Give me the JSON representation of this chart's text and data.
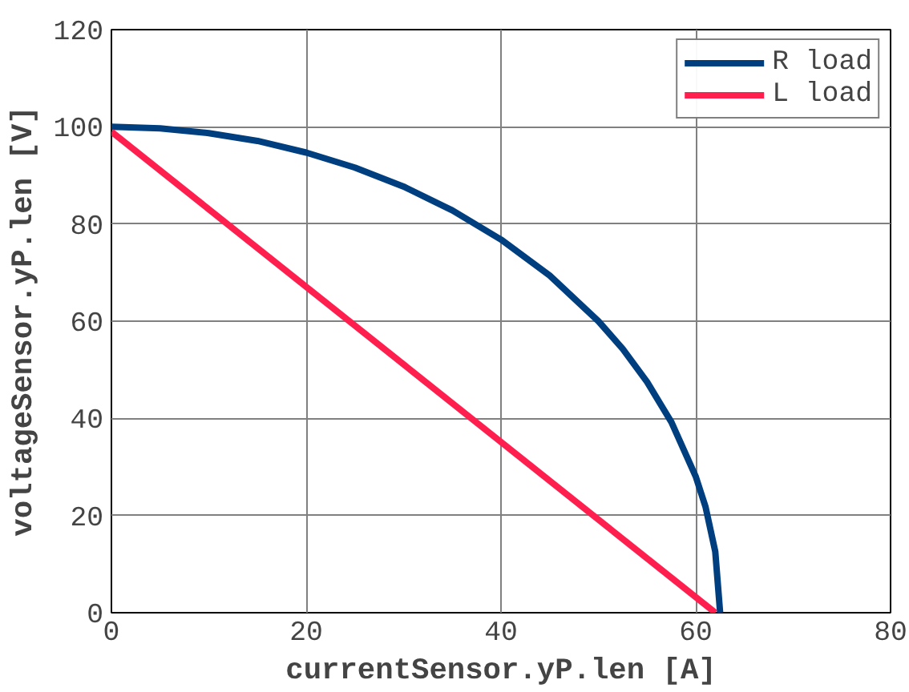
{
  "chart_data": {
    "type": "line",
    "xlabel": "currentSensor.yP.len [A]",
    "ylabel": "voltageSensor.yP.len [V]",
    "xlim": [
      0,
      80
    ],
    "ylim": [
      0,
      120
    ],
    "xticks": [
      0,
      20,
      40,
      60,
      80
    ],
    "yticks": [
      0,
      20,
      40,
      60,
      80,
      100,
      120
    ],
    "grid": true,
    "legend": "top right",
    "line_style": "solid",
    "series": [
      {
        "name": "R load",
        "color": "#003f7f",
        "x": [
          0,
          5,
          10,
          15,
          20,
          25,
          30,
          35,
          40,
          45,
          50,
          52.5,
          55,
          57.5,
          60,
          61,
          62,
          62.5
        ],
        "values": [
          100,
          99.7,
          98.7,
          97.1,
          94.7,
          91.6,
          87.7,
          82.8,
          76.8,
          69.4,
          60,
          54.3,
          47.5,
          39.2,
          28,
          21.8,
          12.6,
          0
        ]
      },
      {
        "name": "L load",
        "color": "#ff1f4f",
        "x": [
          0,
          62
        ],
        "values": [
          99,
          0
        ]
      }
    ]
  }
}
